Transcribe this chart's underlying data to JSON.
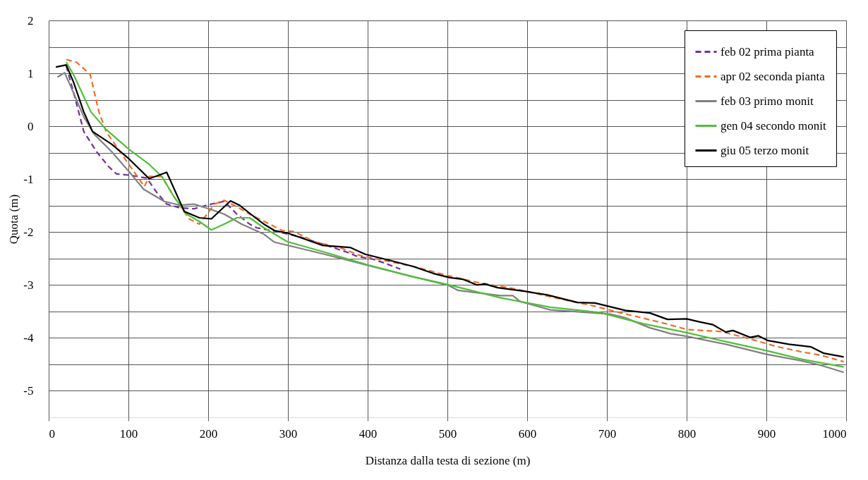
{
  "chart_data": {
    "type": "line",
    "xlabel": "Distanza dalla testa di sezione (m)",
    "ylabel": "Quota (m)",
    "xlim": [
      0,
      1000
    ],
    "xticks": [
      0,
      100,
      200,
      300,
      400,
      500,
      600,
      700,
      800,
      900,
      1000
    ],
    "ylim": [
      -5.5,
      2
    ],
    "yticks": [
      -5,
      {
        "value": -4.5,
        "label": null
      },
      -4,
      {
        "value": -3.5,
        "label": null
      },
      -3,
      {
        "value": -2.5,
        "label": null
      },
      -2,
      {
        "value": -1.5,
        "label": null
      },
      -1,
      {
        "value": -0.5,
        "label": null
      },
      0,
      {
        "value": 0.5,
        "label": null
      },
      1,
      {
        "value": 1.5,
        "label": null
      },
      2
    ],
    "grid": true,
    "legend": "top right",
    "marker": "none",
    "series": [
      {
        "name": "feb 02 prima pianta",
        "color": "#7030a0",
        "line_style": "dashed",
        "x": [
          22,
          31,
          44,
          60,
          75,
          85,
          104,
          123,
          135,
          148,
          164,
          182,
          204,
          220,
          236,
          252,
          261,
          283,
          315,
          346,
          374,
          387,
          406,
          422,
          441
        ],
        "values": [
          1.14,
          0.65,
          -0.1,
          -0.48,
          -0.76,
          -0.9,
          -0.93,
          -0.98,
          -1.24,
          -1.47,
          -1.54,
          -1.56,
          -1.47,
          -1.42,
          -1.66,
          -1.85,
          -1.92,
          -1.98,
          -2.09,
          -2.24,
          -2.38,
          -2.46,
          -2.51,
          -2.59,
          -2.7
        ]
      },
      {
        "name": "apr 02 seconda pianta",
        "color": "#f26b2a",
        "line_style": "dashed",
        "x": [
          22,
          35,
          52,
          63,
          72,
          94,
          107,
          120,
          126,
          142,
          157,
          176,
          189,
          208,
          220,
          236,
          252,
          261,
          293,
          308,
          333,
          368,
          390,
          422,
          460,
          500,
          540,
          580,
          641,
          685,
          710,
          738,
          776,
          800,
          843,
          880,
          912,
          943,
          969,
          997
        ],
        "values": [
          1.26,
          1.21,
          0.98,
          0.27,
          -0.1,
          -0.58,
          -0.86,
          -1.14,
          -0.95,
          -0.95,
          -1.33,
          -1.75,
          -1.85,
          -1.47,
          -1.4,
          -1.52,
          -1.66,
          -1.73,
          -1.97,
          -1.99,
          -2.18,
          -2.31,
          -2.44,
          -2.54,
          -2.66,
          -2.82,
          -2.96,
          -3.06,
          -3.26,
          -3.4,
          -3.5,
          -3.6,
          -3.74,
          -3.84,
          -3.88,
          -4.02,
          -4.16,
          -4.26,
          -4.33,
          -4.45
        ]
      },
      {
        "name": "feb 03 primo monit",
        "color": "#808080",
        "line_style": "solid",
        "x": [
          11,
          20,
          28,
          44,
          57,
          79,
          101,
          119,
          145,
          164,
          182,
          201,
          220,
          242,
          270,
          283,
          346,
          400,
          456,
          500,
          513,
          566,
          582,
          591,
          629,
          704,
          723,
          754,
          780,
          800,
          849,
          900,
          943,
          969,
          997
        ],
        "values": [
          0.93,
          1.01,
          0.74,
          0.18,
          -0.15,
          -0.48,
          -0.86,
          -1.19,
          -1.42,
          -1.49,
          -1.47,
          -1.56,
          -1.66,
          -1.85,
          -2.04,
          -2.19,
          -2.42,
          -2.63,
          -2.84,
          -3.0,
          -3.1,
          -3.2,
          -3.2,
          -3.31,
          -3.47,
          -3.55,
          -3.62,
          -3.81,
          -3.92,
          -3.97,
          -4.12,
          -4.31,
          -4.43,
          -4.52,
          -4.65
        ]
      },
      {
        "name": "gen 04 secondo monit",
        "color": "#4fbf3a",
        "line_style": "solid",
        "x": [
          22,
          31,
          53,
          72,
          101,
          126,
          142,
          157,
          173,
          189,
          204,
          220,
          236,
          252,
          270,
          299,
          346,
          400,
          456,
          500,
          566,
          629,
          691,
          745,
          800,
          849,
          900,
          943,
          997
        ],
        "values": [
          1.21,
          0.98,
          0.27,
          -0.06,
          -0.44,
          -0.72,
          -0.95,
          -1.33,
          -1.66,
          -1.8,
          -1.96,
          -1.85,
          -1.73,
          -1.73,
          -1.92,
          -2.18,
          -2.38,
          -2.62,
          -2.84,
          -2.99,
          -3.24,
          -3.42,
          -3.52,
          -3.73,
          -3.9,
          -4.07,
          -4.24,
          -4.4,
          -4.55
        ]
      },
      {
        "name": "giu 05 terzo monit",
        "color": "#000000",
        "line_style": "solid",
        "x": [
          9,
          22,
          31,
          44,
          55,
          79,
          101,
          126,
          148,
          170,
          189,
          204,
          228,
          239,
          255,
          270,
          283,
          300,
          343,
          378,
          397,
          429,
          457,
          482,
          503,
          519,
          537,
          547,
          563,
          598,
          626,
          663,
          685,
          723,
          754,
          776,
          800,
          817,
          833,
          849,
          858,
          880,
          890,
          902,
          928,
          956,
          972,
          997
        ],
        "values": [
          1.12,
          1.16,
          0.84,
          0.27,
          -0.1,
          -0.34,
          -0.62,
          -0.99,
          -0.87,
          -1.61,
          -1.73,
          -1.75,
          -1.41,
          -1.49,
          -1.68,
          -1.85,
          -1.97,
          -2.02,
          -2.25,
          -2.29,
          -2.42,
          -2.54,
          -2.65,
          -2.78,
          -2.86,
          -2.89,
          -3.0,
          -2.98,
          -3.05,
          -3.12,
          -3.19,
          -3.33,
          -3.34,
          -3.48,
          -3.53,
          -3.65,
          -3.64,
          -3.7,
          -3.75,
          -3.89,
          -3.86,
          -3.99,
          -3.96,
          -4.05,
          -4.12,
          -4.17,
          -4.29,
          -4.36
        ]
      }
    ]
  }
}
